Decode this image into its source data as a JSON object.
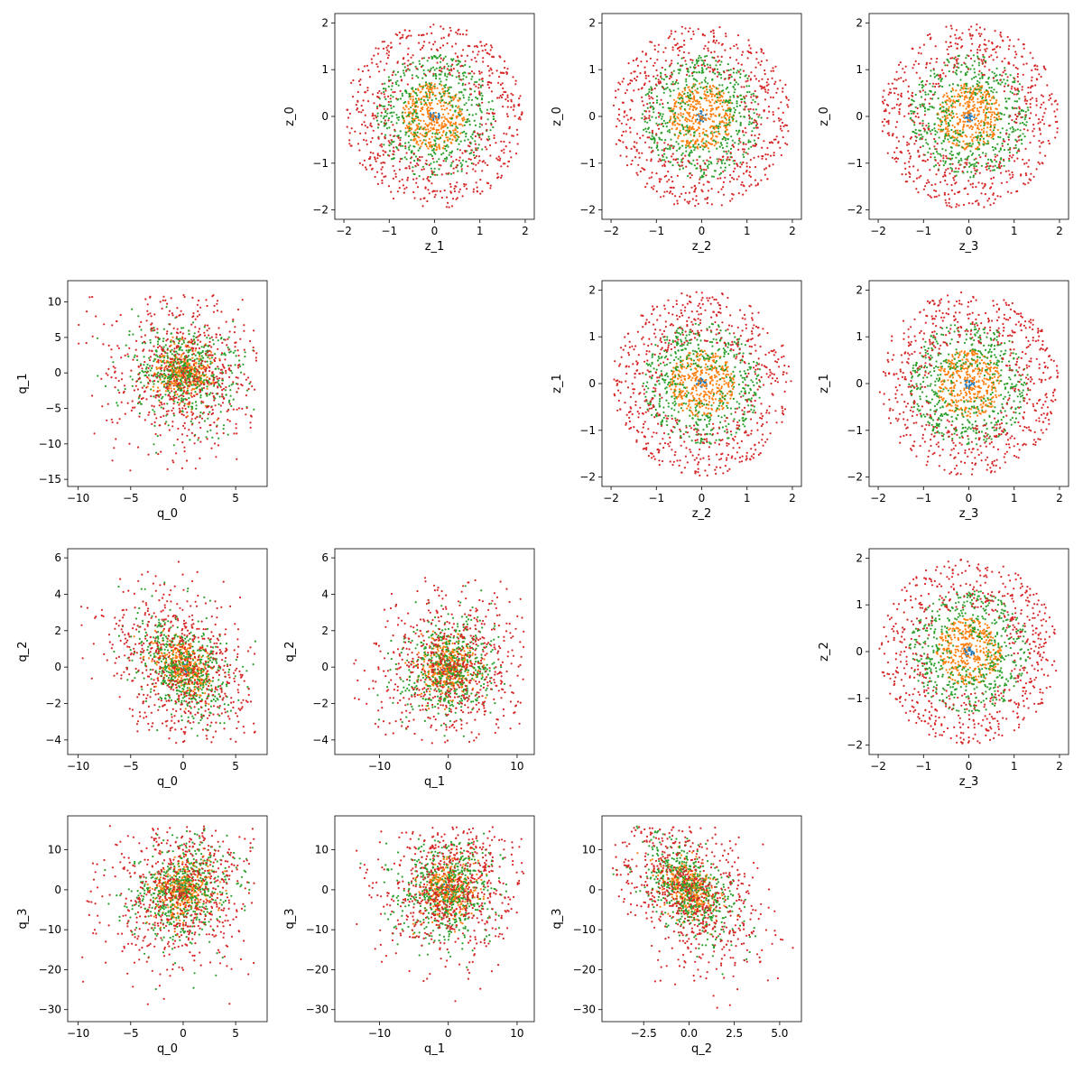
{
  "chart_data": {
    "type": "scatter",
    "title": "",
    "series_colors": [
      "#1f77b4",
      "#ff7f0e",
      "#2ca02c",
      "#d62728"
    ],
    "grid": false,
    "legend": "none",
    "panels": [
      {
        "id": "z0-vs-z1",
        "kind": "z",
        "row": 0,
        "col": 1,
        "xlabel": "z_1",
        "ylabel": "z_0",
        "xlim": [
          -2.2,
          2.2
        ],
        "ylim": [
          -2.2,
          2.2
        ],
        "xticks": [
          -2,
          -1,
          0,
          1,
          2
        ],
        "yticks": [
          -2,
          -1,
          0,
          1,
          2
        ]
      },
      {
        "id": "z0-vs-z2",
        "kind": "z",
        "row": 0,
        "col": 2,
        "xlabel": "z_2",
        "ylabel": "z_0",
        "xlim": [
          -2.2,
          2.2
        ],
        "ylim": [
          -2.2,
          2.2
        ],
        "xticks": [
          -2,
          -1,
          0,
          1,
          2
        ],
        "yticks": [
          -2,
          -1,
          0,
          1,
          2
        ]
      },
      {
        "id": "z0-vs-z3",
        "kind": "z",
        "row": 0,
        "col": 3,
        "xlabel": "z_3",
        "ylabel": "z_0",
        "xlim": [
          -2.2,
          2.2
        ],
        "ylim": [
          -2.2,
          2.2
        ],
        "xticks": [
          -2,
          -1,
          0,
          1,
          2
        ],
        "yticks": [
          -2,
          -1,
          0,
          1,
          2
        ]
      },
      {
        "id": "q1-vs-q0",
        "kind": "q",
        "row": 1,
        "col": 0,
        "xlabel": "q_0",
        "ylabel": "q_1",
        "xlim": [
          -11,
          8
        ],
        "ylim": [
          -16,
          13
        ],
        "xticks": [
          -10,
          -5,
          0,
          5
        ],
        "yticks": [
          -15,
          -10,
          -5,
          0,
          5,
          10
        ],
        "shape": {
          "xr": [
            -10,
            7
          ],
          "yr": [
            -14,
            11
          ],
          "corr": -0.1
        }
      },
      {
        "id": "z1-vs-z2",
        "kind": "z",
        "row": 1,
        "col": 2,
        "xlabel": "z_2",
        "ylabel": "z_1",
        "xlim": [
          -2.2,
          2.2
        ],
        "ylim": [
          -2.2,
          2.2
        ],
        "xticks": [
          -2,
          -1,
          0,
          1,
          2
        ],
        "yticks": [
          -2,
          -1,
          0,
          1,
          2
        ]
      },
      {
        "id": "z1-vs-z3",
        "kind": "z",
        "row": 1,
        "col": 3,
        "xlabel": "z_3",
        "ylabel": "z_1",
        "xlim": [
          -2.2,
          2.2
        ],
        "ylim": [
          -2.2,
          2.2
        ],
        "xticks": [
          -2,
          -1,
          0,
          1,
          2
        ],
        "yticks": [
          -2,
          -1,
          0,
          1,
          2
        ]
      },
      {
        "id": "q2-vs-q0",
        "kind": "q",
        "row": 2,
        "col": 0,
        "xlabel": "q_0",
        "ylabel": "q_2",
        "xlim": [
          -11,
          8
        ],
        "ylim": [
          -4.8,
          6.5
        ],
        "xticks": [
          -10,
          -5,
          0,
          5
        ],
        "yticks": [
          -4,
          -2,
          0,
          2,
          4,
          6
        ],
        "shape": {
          "xr": [
            -10,
            7
          ],
          "yr": [
            -4.2,
            6
          ],
          "corr": -0.35
        }
      },
      {
        "id": "q2-vs-q1",
        "kind": "q",
        "row": 2,
        "col": 1,
        "xlabel": "q_1",
        "ylabel": "q_2",
        "xlim": [
          -16.5,
          12.5
        ],
        "ylim": [
          -4.8,
          6.5
        ],
        "xticks": [
          -10,
          0,
          10
        ],
        "yticks": [
          -4,
          -2,
          0,
          2,
          4,
          6
        ],
        "shape": {
          "xr": [
            -14,
            11
          ],
          "yr": [
            -4.2,
            6
          ],
          "corr": 0.1
        }
      },
      {
        "id": "z2-vs-z3",
        "kind": "z",
        "row": 2,
        "col": 3,
        "xlabel": "z_3",
        "ylabel": "z_2",
        "xlim": [
          -2.2,
          2.2
        ],
        "ylim": [
          -2.2,
          2.2
        ],
        "xticks": [
          -2,
          -1,
          0,
          1,
          2
        ],
        "yticks": [
          -2,
          -1,
          0,
          1,
          2
        ]
      },
      {
        "id": "q3-vs-q0",
        "kind": "q",
        "row": 3,
        "col": 0,
        "xlabel": "q_0",
        "ylabel": "q_3",
        "xlim": [
          -11,
          8
        ],
        "ylim": [
          -33,
          18.5
        ],
        "xticks": [
          -10,
          -5,
          0,
          5
        ],
        "yticks": [
          -30,
          -20,
          -10,
          0,
          10
        ],
        "shape": {
          "xr": [
            -10,
            7
          ],
          "yr": [
            -30,
            16
          ],
          "corr": 0.2
        }
      },
      {
        "id": "q3-vs-q1",
        "kind": "q",
        "row": 3,
        "col": 1,
        "xlabel": "q_1",
        "ylabel": "q_3",
        "xlim": [
          -16.5,
          12.5
        ],
        "ylim": [
          -33,
          18.5
        ],
        "xticks": [
          -10,
          0,
          10
        ],
        "yticks": [
          -30,
          -20,
          -10,
          0,
          10
        ],
        "shape": {
          "xr": [
            -14,
            11
          ],
          "yr": [
            -30,
            16
          ],
          "corr": 0.1
        }
      },
      {
        "id": "q3-vs-q2",
        "kind": "q",
        "row": 3,
        "col": 2,
        "xlabel": "q_2",
        "ylabel": "q_3",
        "xlim": [
          -4.8,
          6.2
        ],
        "ylim": [
          -33,
          18.5
        ],
        "xticks": [
          -2.5,
          0.0,
          2.5,
          5.0
        ],
        "xtick_labels": [
          "−2.5",
          "0.0",
          "2.5",
          "5.0"
        ],
        "yticks": [
          -30,
          -20,
          -10,
          0,
          10
        ],
        "shape": {
          "xr": [
            -4.2,
            5.8
          ],
          "yr": [
            -30,
            16
          ],
          "corr": -0.45
        }
      }
    ]
  }
}
